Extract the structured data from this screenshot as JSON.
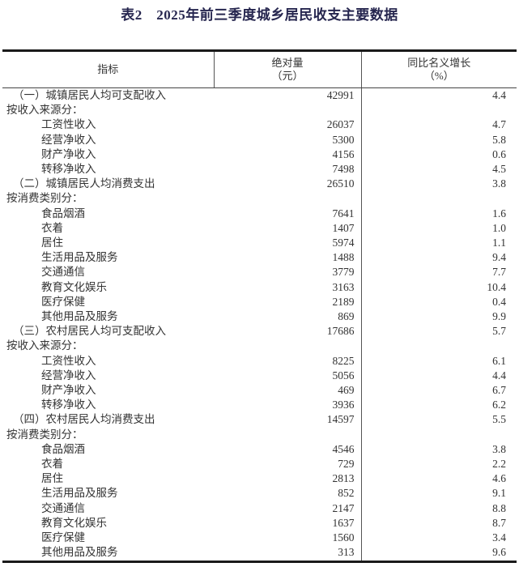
{
  "page": {
    "title": "表2　2025年前三季度城乡居民收支主要数据"
  },
  "colors": {
    "title_text": "#26264f",
    "body_text": "#333333",
    "rule": "#1a1a1a",
    "background": "#ffffff"
  },
  "chart_data": {
    "type": "table",
    "title": "表2　2025年前三季度城乡居民收支主要数据",
    "columns": [
      "指标",
      "绝对量（元）",
      "同比名义增长（%）"
    ],
    "header": {
      "indicator": "指标",
      "absolute_line1": "绝对量",
      "absolute_line2": "（元）",
      "growth_line1": "同比名义增长",
      "growth_line2": "（%）"
    },
    "rows": [
      {
        "label": "（一）城镇居民人均可支配收入",
        "level": "category",
        "absolute": "42991",
        "growth": "4.4"
      },
      {
        "label": "按收入来源分：",
        "level": "group",
        "absolute": "",
        "growth": ""
      },
      {
        "label": "工资性收入",
        "level": "sub",
        "absolute": "26037",
        "growth": "4.7"
      },
      {
        "label": "经营净收入",
        "level": "sub",
        "absolute": "5300",
        "growth": "5.8"
      },
      {
        "label": "财产净收入",
        "level": "sub",
        "absolute": "4156",
        "growth": "0.6"
      },
      {
        "label": "转移净收入",
        "level": "sub",
        "absolute": "7498",
        "growth": "4.5"
      },
      {
        "label": "（二）城镇居民人均消费支出",
        "level": "category",
        "absolute": "26510",
        "growth": "3.8"
      },
      {
        "label": "按消费类别分：",
        "level": "group",
        "absolute": "",
        "growth": ""
      },
      {
        "label": "食品烟酒",
        "level": "sub",
        "absolute": "7641",
        "growth": "1.6"
      },
      {
        "label": "衣着",
        "level": "sub",
        "absolute": "1407",
        "growth": "1.0"
      },
      {
        "label": "居住",
        "level": "sub",
        "absolute": "5974",
        "growth": "1.1"
      },
      {
        "label": "生活用品及服务",
        "level": "sub",
        "absolute": "1488",
        "growth": "9.4"
      },
      {
        "label": "交通通信",
        "level": "sub",
        "absolute": "3779",
        "growth": "7.7"
      },
      {
        "label": "教育文化娱乐",
        "level": "sub",
        "absolute": "3163",
        "growth": "10.4"
      },
      {
        "label": "医疗保健",
        "level": "sub",
        "absolute": "2189",
        "growth": "0.4"
      },
      {
        "label": "其他用品及服务",
        "level": "sub",
        "absolute": "869",
        "growth": "9.9"
      },
      {
        "label": "（三）农村居民人均可支配收入",
        "level": "category",
        "absolute": "17686",
        "growth": "5.7"
      },
      {
        "label": "按收入来源分：",
        "level": "group",
        "absolute": "",
        "growth": ""
      },
      {
        "label": "工资性收入",
        "level": "sub",
        "absolute": "8225",
        "growth": "6.1"
      },
      {
        "label": "经营净收入",
        "level": "sub",
        "absolute": "5056",
        "growth": "4.4"
      },
      {
        "label": "财产净收入",
        "level": "sub",
        "absolute": "469",
        "growth": "6.7"
      },
      {
        "label": "转移净收入",
        "level": "sub",
        "absolute": "3936",
        "growth": "6.2"
      },
      {
        "label": "（四）农村居民人均消费支出",
        "level": "category",
        "absolute": "14597",
        "growth": "5.5"
      },
      {
        "label": "按消费类别分：",
        "level": "group",
        "absolute": "",
        "growth": ""
      },
      {
        "label": "食品烟酒",
        "level": "sub",
        "absolute": "4546",
        "growth": "3.8"
      },
      {
        "label": "衣着",
        "level": "sub",
        "absolute": "729",
        "growth": "2.2"
      },
      {
        "label": "居住",
        "level": "sub",
        "absolute": "2813",
        "growth": "4.6"
      },
      {
        "label": "生活用品及服务",
        "level": "sub",
        "absolute": "852",
        "growth": "9.1"
      },
      {
        "label": "交通通信",
        "level": "sub",
        "absolute": "2147",
        "growth": "8.8"
      },
      {
        "label": "教育文化娱乐",
        "level": "sub",
        "absolute": "1637",
        "growth": "8.7"
      },
      {
        "label": "医疗保健",
        "level": "sub",
        "absolute": "1560",
        "growth": "3.4"
      },
      {
        "label": "其他用品及服务",
        "level": "sub",
        "absolute": "313",
        "growth": "9.6"
      }
    ]
  }
}
